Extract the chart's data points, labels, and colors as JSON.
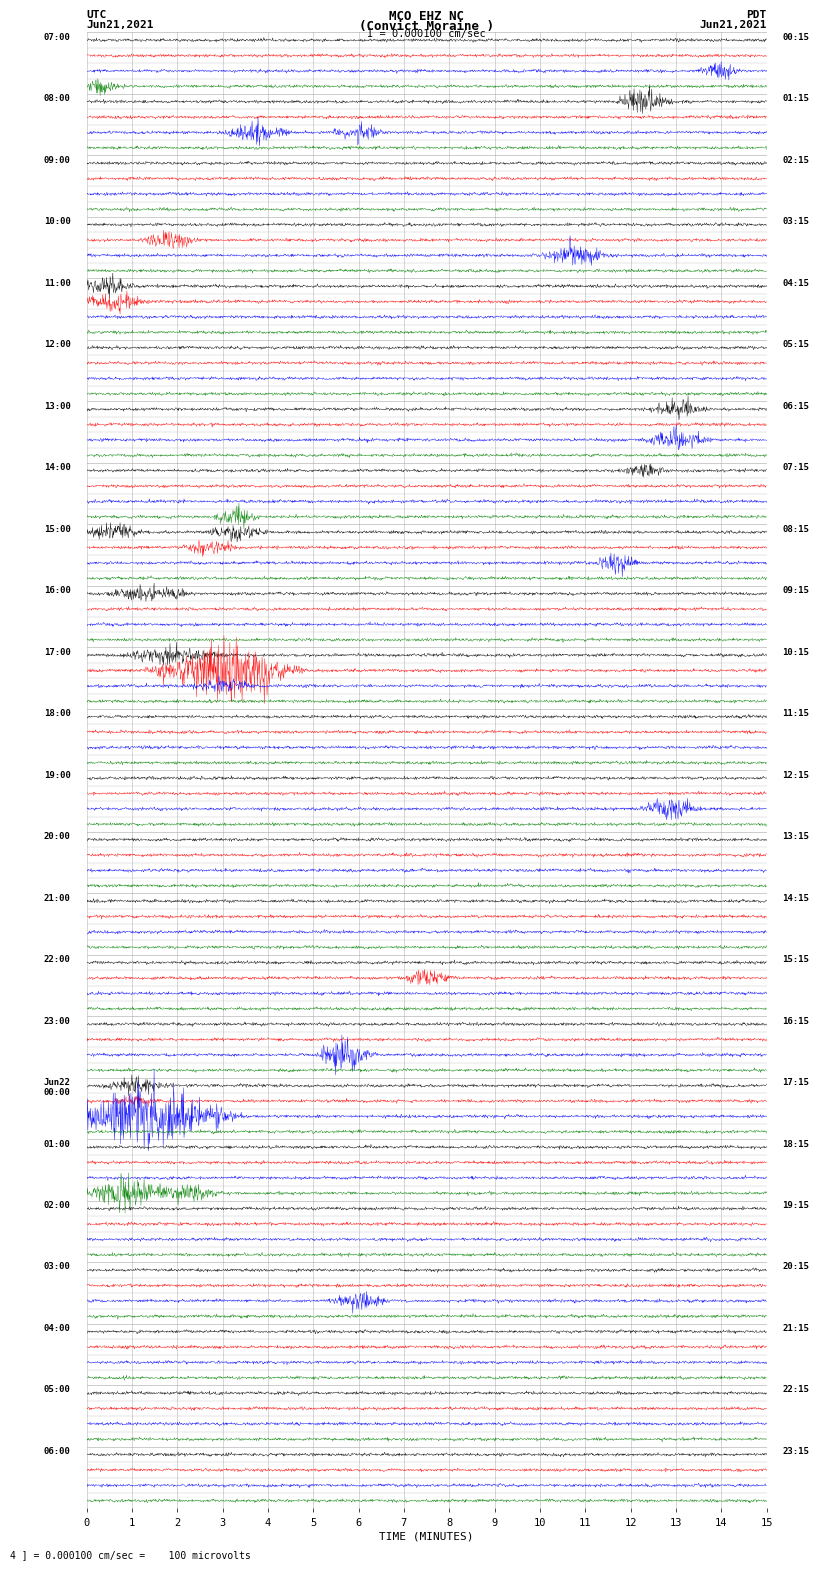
{
  "title_line1": "MCO EHZ NC",
  "title_line2": "(Convict Moraine )",
  "scale_label": "I = 0.000100 cm/sec",
  "utc_label": "UTC",
  "utc_date": "Jun21,2021",
  "pdt_label": "PDT",
  "pdt_date": "Jun21,2021",
  "xlabel": "TIME (MINUTES)",
  "bottom_label": "4 ] = 0.000100 cm/sec =    100 microvolts",
  "trace_colors": [
    "black",
    "red",
    "blue",
    "green"
  ],
  "xmin": 0,
  "xmax": 15,
  "xticks": [
    0,
    1,
    2,
    3,
    4,
    5,
    6,
    7,
    8,
    9,
    10,
    11,
    12,
    13,
    14,
    15
  ],
  "bg_color": "white",
  "grid_color": "#999999",
  "n_rows": 96,
  "noise_amplitude": 0.18
}
